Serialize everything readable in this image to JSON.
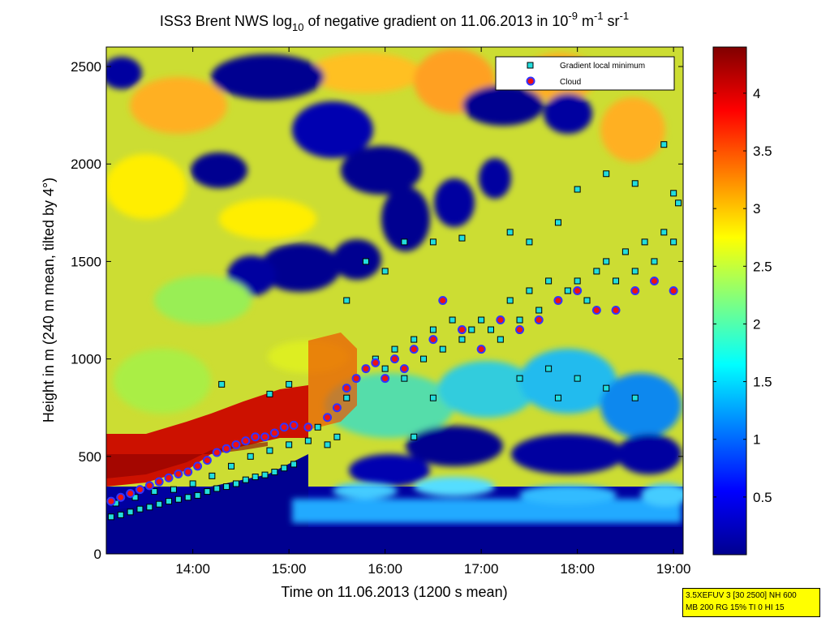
{
  "chart_data": {
    "type": "heatmap",
    "title": {
      "prefix": "ISS3 Brent NWS log",
      "log_base": "10",
      "middle": " of negative gradient on 11.06.2013 in 10",
      "exp1": "-9",
      "unit_m": " m",
      "exp2": "-1",
      "unit_sr": " sr",
      "exp3": "-1"
    },
    "xlabel": "Time on 11.06.2013 (1200 s mean)",
    "ylabel": "Height in m (240 m mean, tilted by 4°)",
    "xlim": [
      13.1,
      19.1
    ],
    "ylim": [
      0,
      2600
    ],
    "x_ticks": [
      {
        "value": 14,
        "label": "14:00"
      },
      {
        "value": 15,
        "label": "15:00"
      },
      {
        "value": 16,
        "label": "16:00"
      },
      {
        "value": 17,
        "label": "17:00"
      },
      {
        "value": 18,
        "label": "18:00"
      },
      {
        "value": 19,
        "label": "19:00"
      }
    ],
    "y_ticks": [
      {
        "value": 0,
        "label": "0"
      },
      {
        "value": 500,
        "label": "500"
      },
      {
        "value": 1000,
        "label": "1000"
      },
      {
        "value": 1500,
        "label": "1500"
      },
      {
        "value": 2000,
        "label": "2000"
      },
      {
        "value": 2500,
        "label": "2500"
      }
    ],
    "colorbar": {
      "range": [
        0,
        4.4
      ],
      "ticks": [
        {
          "value": 0.5,
          "label": "0.5"
        },
        {
          "value": 1,
          "label": "1"
        },
        {
          "value": 1.5,
          "label": "1.5"
        },
        {
          "value": 2,
          "label": "2"
        },
        {
          "value": 2.5,
          "label": "2.5"
        },
        {
          "value": 3,
          "label": "3"
        },
        {
          "value": 3.5,
          "label": "3.5"
        },
        {
          "value": 4,
          "label": "4"
        }
      ]
    },
    "legend": {
      "placement": "top-right",
      "entries": [
        {
          "label": "Gradient local minimum",
          "marker": "square",
          "color": "#22dddd"
        },
        {
          "label": "Cloud",
          "marker": "circle",
          "color": "#ee1111",
          "edge": "#3333ff"
        }
      ]
    },
    "series": [
      {
        "name": "Gradient local minimum",
        "points": [
          [
            13.15,
            190
          ],
          [
            13.25,
            200
          ],
          [
            13.35,
            215
          ],
          [
            13.45,
            230
          ],
          [
            13.55,
            240
          ],
          [
            13.65,
            255
          ],
          [
            13.75,
            270
          ],
          [
            13.85,
            280
          ],
          [
            13.95,
            290
          ],
          [
            14.05,
            300
          ],
          [
            14.15,
            320
          ],
          [
            14.25,
            335
          ],
          [
            14.35,
            345
          ],
          [
            14.45,
            360
          ],
          [
            14.55,
            380
          ],
          [
            14.65,
            395
          ],
          [
            14.75,
            405
          ],
          [
            14.85,
            420
          ],
          [
            14.95,
            440
          ],
          [
            15.05,
            460
          ],
          [
            13.2,
            260
          ],
          [
            13.4,
            290
          ],
          [
            13.6,
            320
          ],
          [
            13.8,
            330
          ],
          [
            14.0,
            360
          ],
          [
            14.2,
            400
          ],
          [
            14.4,
            450
          ],
          [
            14.6,
            500
          ],
          [
            14.8,
            530
          ],
          [
            15.0,
            560
          ],
          [
            15.2,
            580
          ],
          [
            15.3,
            650
          ],
          [
            15.4,
            560
          ],
          [
            15.5,
            600
          ],
          [
            15.6,
            800
          ],
          [
            15.7,
            900
          ],
          [
            15.8,
            950
          ],
          [
            15.9,
            1000
          ],
          [
            16.0,
            950
          ],
          [
            16.1,
            1050
          ],
          [
            16.2,
            900
          ],
          [
            16.3,
            1100
          ],
          [
            16.4,
            1000
          ],
          [
            16.5,
            1150
          ],
          [
            16.6,
            1050
          ],
          [
            16.7,
            1200
          ],
          [
            16.8,
            1100
          ],
          [
            16.9,
            1150
          ],
          [
            17.0,
            1200
          ],
          [
            17.1,
            1150
          ],
          [
            17.2,
            1100
          ],
          [
            17.3,
            1300
          ],
          [
            17.4,
            1200
          ],
          [
            17.5,
            1350
          ],
          [
            17.6,
            1250
          ],
          [
            17.7,
            1400
          ],
          [
            17.8,
            1300
          ],
          [
            17.9,
            1350
          ],
          [
            18.0,
            1400
          ],
          [
            18.1,
            1300
          ],
          [
            18.2,
            1450
          ],
          [
            18.3,
            1500
          ],
          [
            18.4,
            1400
          ],
          [
            18.5,
            1550
          ],
          [
            18.6,
            1450
          ],
          [
            18.7,
            1600
          ],
          [
            18.8,
            1500
          ],
          [
            18.9,
            1650
          ],
          [
            19.0,
            1600
          ],
          [
            19.05,
            1800
          ],
          [
            15.6,
            1300
          ],
          [
            15.8,
            1500
          ],
          [
            16.0,
            1450
          ],
          [
            16.2,
            1600
          ],
          [
            16.5,
            1600
          ],
          [
            16.8,
            1620
          ],
          [
            17.3,
            1650
          ],
          [
            17.5,
            1600
          ],
          [
            17.8,
            1700
          ],
          [
            18.0,
            1870
          ],
          [
            18.3,
            1950
          ],
          [
            18.6,
            1900
          ],
          [
            18.9,
            2100
          ],
          [
            19.0,
            1850
          ],
          [
            17.4,
            900
          ],
          [
            17.7,
            950
          ],
          [
            18.0,
            900
          ],
          [
            18.3,
            850
          ],
          [
            18.6,
            800
          ],
          [
            16.3,
            600
          ],
          [
            16.5,
            800
          ],
          [
            17.8,
            800
          ],
          [
            15.0,
            870
          ],
          [
            14.3,
            870
          ],
          [
            14.8,
            820
          ]
        ]
      },
      {
        "name": "Cloud",
        "points": [
          [
            13.15,
            270
          ],
          [
            13.25,
            290
          ],
          [
            13.35,
            310
          ],
          [
            13.45,
            330
          ],
          [
            13.55,
            350
          ],
          [
            13.65,
            370
          ],
          [
            13.75,
            390
          ],
          [
            13.85,
            410
          ],
          [
            13.95,
            420
          ],
          [
            14.05,
            450
          ],
          [
            14.15,
            480
          ],
          [
            14.25,
            520
          ],
          [
            14.35,
            540
          ],
          [
            14.45,
            560
          ],
          [
            14.55,
            580
          ],
          [
            14.65,
            600
          ],
          [
            14.75,
            600
          ],
          [
            14.85,
            620
          ],
          [
            14.95,
            650
          ],
          [
            15.05,
            660
          ],
          [
            15.2,
            650
          ],
          [
            15.4,
            700
          ],
          [
            15.5,
            750
          ],
          [
            15.6,
            850
          ],
          [
            15.7,
            900
          ],
          [
            15.8,
            950
          ],
          [
            15.9,
            980
          ],
          [
            16.0,
            900
          ],
          [
            16.1,
            1000
          ],
          [
            16.2,
            950
          ],
          [
            16.3,
            1050
          ],
          [
            16.5,
            1100
          ],
          [
            16.6,
            1300
          ],
          [
            16.8,
            1150
          ],
          [
            17.0,
            1050
          ],
          [
            17.2,
            1200
          ],
          [
            17.4,
            1150
          ],
          [
            17.6,
            1200
          ],
          [
            17.8,
            1300
          ],
          [
            18.0,
            1350
          ],
          [
            18.2,
            1250
          ],
          [
            18.4,
            1250
          ],
          [
            18.6,
            1350
          ],
          [
            18.8,
            1400
          ],
          [
            19.0,
            1350
          ]
        ]
      }
    ]
  },
  "info_box": {
    "line1": "3.5XEFUV 3 [30 2500] NH 600",
    "line2": "MB 200 RG 15% TI 0 HI 15"
  }
}
